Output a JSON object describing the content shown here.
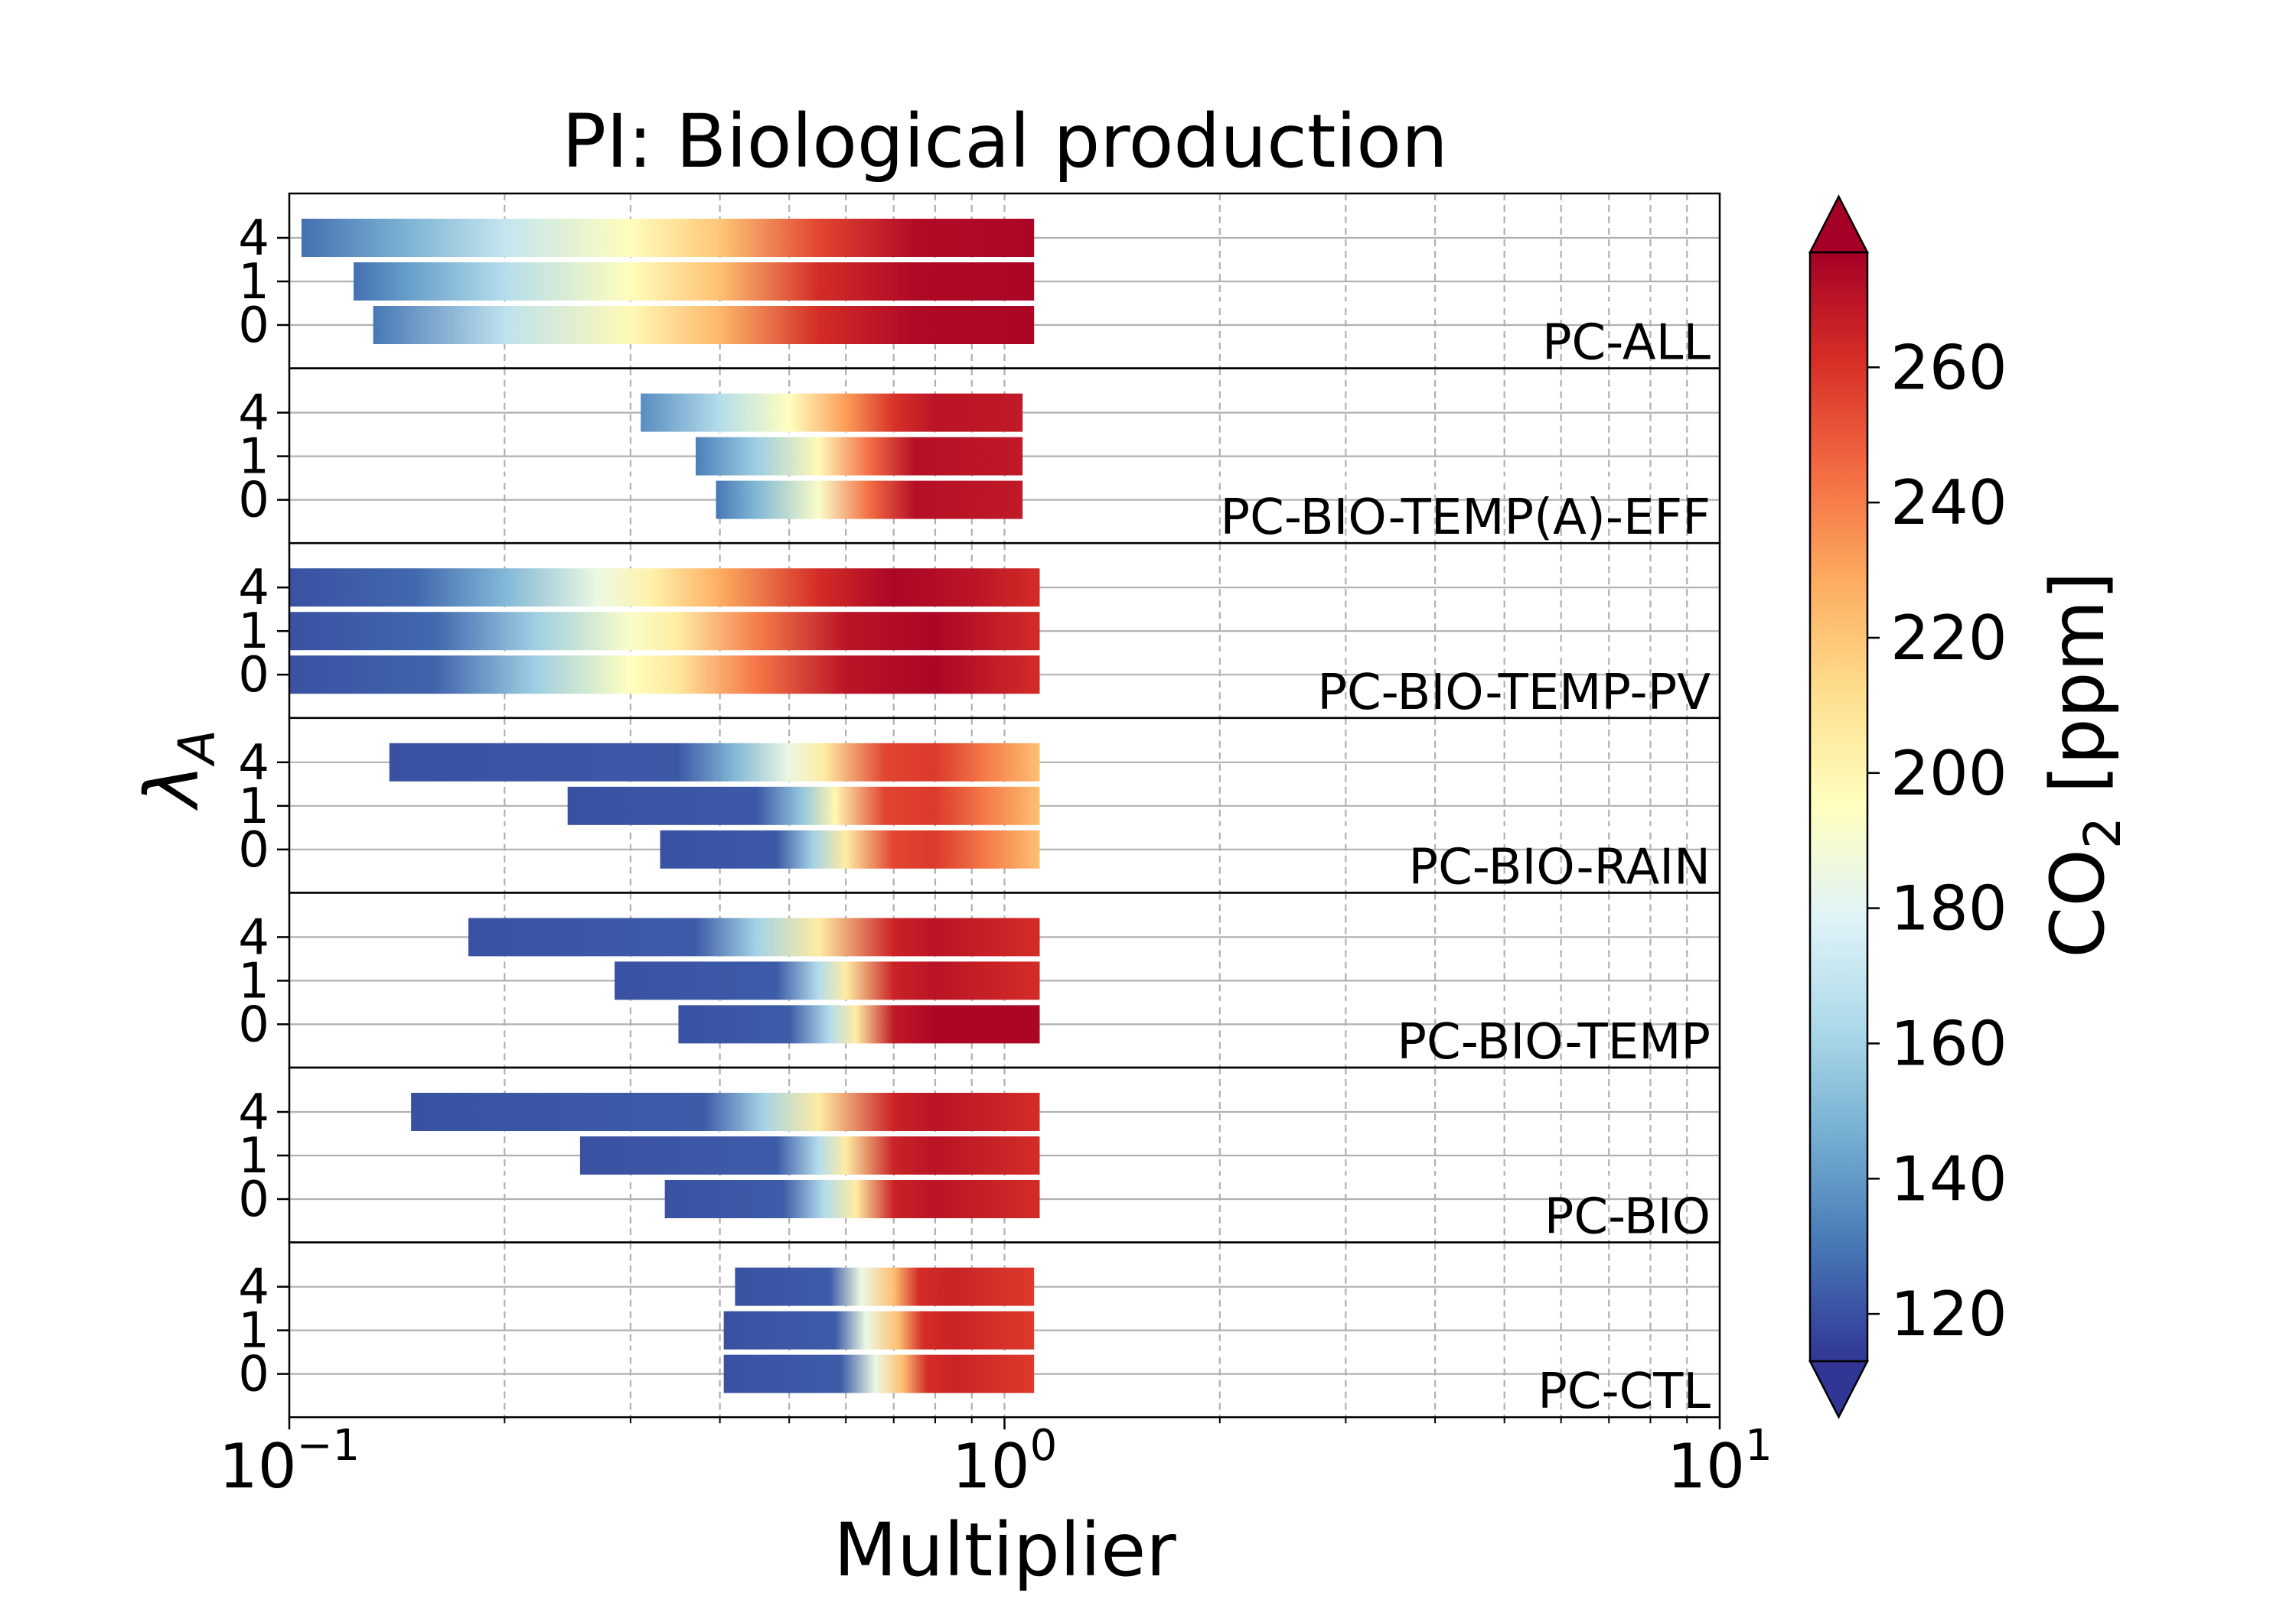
{
  "chart_data": {
    "type": "heatmap",
    "title": "PI: Biological production",
    "xlabel": "Multiplier",
    "ylabel": "λ_A",
    "xscale": "log",
    "xlim": [
      0.1,
      10
    ],
    "x_ticks": [
      {
        "value": 0.1,
        "base": "10",
        "exp": "−1"
      },
      {
        "value": 1,
        "base": "10",
        "exp": "0"
      },
      {
        "value": 10,
        "base": "10",
        "exp": "1"
      }
    ],
    "grid": true,
    "y_tick_labels": [
      "4",
      "1",
      "0"
    ],
    "colorbar": {
      "label_main": "CO",
      "label_sub": "2",
      "label_unit": " [ppm]",
      "range": [
        113,
        277
      ],
      "ticks": [
        120,
        140,
        160,
        180,
        200,
        220,
        240,
        260
      ],
      "extend": "both",
      "colormap": "RdYlBu_r",
      "colors": [
        "#313695",
        "#4575b4",
        "#74add1",
        "#abd9e9",
        "#e0f3f8",
        "#ffffbf",
        "#fee090",
        "#fdae61",
        "#f46d43",
        "#d73027",
        "#a50026"
      ]
    },
    "panels": [
      {
        "name": "PC-ALL",
        "rows": [
          {
            "lambda": "4",
            "x_start": 0.104,
            "x_end": 1.1,
            "co2": [
              [
                0.104,
                128
              ],
              [
                0.15,
                150
              ],
              [
                0.2,
                170
              ],
              [
                0.3,
                196
              ],
              [
                0.4,
                220
              ],
              [
                0.55,
                255
              ],
              [
                0.75,
                273
              ],
              [
                1.1,
                275
              ]
            ]
          },
          {
            "lambda": "1",
            "x_start": 0.123,
            "x_end": 1.1,
            "co2": [
              [
                0.123,
                128
              ],
              [
                0.15,
                143
              ],
              [
                0.2,
                165
              ],
              [
                0.3,
                196
              ],
              [
                0.4,
                222
              ],
              [
                0.55,
                262
              ],
              [
                0.75,
                274
              ],
              [
                1.1,
                275
              ]
            ]
          },
          {
            "lambda": "0",
            "x_start": 0.131,
            "x_end": 1.1,
            "co2": [
              [
                0.131,
                130
              ],
              [
                0.2,
                168
              ],
              [
                0.3,
                198
              ],
              [
                0.4,
                225
              ],
              [
                0.55,
                262
              ],
              [
                0.75,
                274
              ],
              [
                1.1,
                275
              ]
            ]
          }
        ]
      },
      {
        "name": "PC-BIO-TEMP(A)-EFF",
        "rows": [
          {
            "lambda": "4",
            "x_start": 0.31,
            "x_end": 1.06,
            "co2": [
              [
                0.31,
                136
              ],
              [
                0.4,
                165
              ],
              [
                0.5,
                195
              ],
              [
                0.6,
                232
              ],
              [
                0.7,
                260
              ],
              [
                0.8,
                270
              ],
              [
                1.06,
                268
              ]
            ]
          },
          {
            "lambda": "1",
            "x_start": 0.37,
            "x_end": 1.06,
            "co2": [
              [
                0.37,
                132
              ],
              [
                0.45,
                158
              ],
              [
                0.55,
                198
              ],
              [
                0.65,
                245
              ],
              [
                0.75,
                272
              ],
              [
                1.06,
                268
              ]
            ]
          },
          {
            "lambda": "0",
            "x_start": 0.395,
            "x_end": 1.06,
            "co2": [
              [
                0.395,
                130
              ],
              [
                0.45,
                150
              ],
              [
                0.55,
                192
              ],
              [
                0.65,
                245
              ],
              [
                0.75,
                272
              ],
              [
                1.06,
                268
              ]
            ]
          }
        ]
      },
      {
        "name": "PC-BIO-TEMP-PV",
        "rows": [
          {
            "lambda": "4",
            "x_start": 0.1,
            "x_end": 1.12,
            "co2": [
              [
                0.1,
                120
              ],
              [
                0.15,
                126
              ],
              [
                0.2,
                150
              ],
              [
                0.27,
                185
              ],
              [
                0.32,
                202
              ],
              [
                0.4,
                228
              ],
              [
                0.55,
                262
              ],
              [
                0.7,
                275
              ],
              [
                0.9,
                270
              ],
              [
                1.12,
                262
              ]
            ]
          },
          {
            "lambda": "1",
            "x_start": 0.1,
            "x_end": 1.12,
            "co2": [
              [
                0.1,
                120
              ],
              [
                0.16,
                126
              ],
              [
                0.22,
                158
              ],
              [
                0.3,
                192
              ],
              [
                0.35,
                205
              ],
              [
                0.45,
                240
              ],
              [
                0.6,
                270
              ],
              [
                0.8,
                275
              ],
              [
                1.12,
                262
              ]
            ]
          },
          {
            "lambda": "0",
            "x_start": 0.1,
            "x_end": 1.12,
            "co2": [
              [
                0.1,
                120
              ],
              [
                0.16,
                125
              ],
              [
                0.22,
                158
              ],
              [
                0.3,
                195
              ],
              [
                0.35,
                208
              ],
              [
                0.45,
                242
              ],
              [
                0.6,
                270
              ],
              [
                0.8,
                275
              ],
              [
                1.12,
                262
              ]
            ]
          }
        ]
      },
      {
        "name": "PC-BIO-RAIN",
        "rows": [
          {
            "lambda": "4",
            "x_start": 0.138,
            "x_end": 1.12,
            "co2": [
              [
                0.138,
                120
              ],
              [
                0.35,
                122
              ],
              [
                0.42,
                150
              ],
              [
                0.5,
                185
              ],
              [
                0.56,
                205
              ],
              [
                0.68,
                255
              ],
              [
                0.8,
                258
              ],
              [
                0.95,
                240
              ],
              [
                1.12,
                222
              ]
            ]
          },
          {
            "lambda": "1",
            "x_start": 0.245,
            "x_end": 1.12,
            "co2": [
              [
                0.245,
                120
              ],
              [
                0.45,
                122
              ],
              [
                0.52,
                155
              ],
              [
                0.58,
                200
              ],
              [
                0.68,
                255
              ],
              [
                0.8,
                258
              ],
              [
                0.95,
                240
              ],
              [
                1.12,
                222
              ]
            ]
          },
          {
            "lambda": "0",
            "x_start": 0.33,
            "x_end": 1.12,
            "co2": [
              [
                0.33,
                120
              ],
              [
                0.48,
                122
              ],
              [
                0.54,
                160
              ],
              [
                0.6,
                205
              ],
              [
                0.7,
                255
              ],
              [
                0.8,
                258
              ],
              [
                0.95,
                240
              ],
              [
                1.12,
                222
              ]
            ]
          }
        ]
      },
      {
        "name": "PC-BIO-TEMP",
        "rows": [
          {
            "lambda": "4",
            "x_start": 0.178,
            "x_end": 1.12,
            "co2": [
              [
                0.178,
                120
              ],
              [
                0.37,
                123
              ],
              [
                0.45,
                160
              ],
              [
                0.55,
                205
              ],
              [
                0.7,
                265
              ],
              [
                0.8,
                270
              ],
              [
                1.12,
                262
              ]
            ]
          },
          {
            "lambda": "1",
            "x_start": 0.285,
            "x_end": 1.12,
            "co2": [
              [
                0.285,
                120
              ],
              [
                0.48,
                123
              ],
              [
                0.55,
                165
              ],
              [
                0.6,
                205
              ],
              [
                0.7,
                265
              ],
              [
                0.8,
                270
              ],
              [
                1.12,
                262
              ]
            ]
          },
          {
            "lambda": "0",
            "x_start": 0.35,
            "x_end": 1.12,
            "co2": [
              [
                0.35,
                120
              ],
              [
                0.5,
                123
              ],
              [
                0.57,
                165
              ],
              [
                0.62,
                205
              ],
              [
                0.7,
                268
              ],
              [
                0.8,
                275
              ],
              [
                1.12,
                275
              ]
            ]
          }
        ]
      },
      {
        "name": "PC-BIO",
        "rows": [
          {
            "lambda": "4",
            "x_start": 0.148,
            "x_end": 1.12,
            "co2": [
              [
                0.148,
                120
              ],
              [
                0.38,
                123
              ],
              [
                0.46,
                160
              ],
              [
                0.55,
                205
              ],
              [
                0.7,
                265
              ],
              [
                0.8,
                270
              ],
              [
                1.12,
                262
              ]
            ]
          },
          {
            "lambda": "1",
            "x_start": 0.255,
            "x_end": 1.12,
            "co2": [
              [
                0.255,
                120
              ],
              [
                0.48,
                123
              ],
              [
                0.55,
                165
              ],
              [
                0.6,
                205
              ],
              [
                0.7,
                265
              ],
              [
                0.8,
                270
              ],
              [
                1.12,
                262
              ]
            ]
          },
          {
            "lambda": "0",
            "x_start": 0.335,
            "x_end": 1.12,
            "co2": [
              [
                0.335,
                120
              ],
              [
                0.49,
                123
              ],
              [
                0.56,
                165
              ],
              [
                0.62,
                205
              ],
              [
                0.7,
                265
              ],
              [
                0.8,
                270
              ],
              [
                1.12,
                262
              ]
            ]
          }
        ]
      },
      {
        "name": "PC-CTL",
        "rows": [
          {
            "lambda": "4",
            "x_start": 0.42,
            "x_end": 1.1,
            "co2": [
              [
                0.42,
                120
              ],
              [
                0.57,
                123
              ],
              [
                0.63,
                185
              ],
              [
                0.7,
                222
              ],
              [
                0.76,
                262
              ],
              [
                0.85,
                265
              ],
              [
                1.1,
                258
              ]
            ]
          },
          {
            "lambda": "1",
            "x_start": 0.405,
            "x_end": 1.1,
            "co2": [
              [
                0.405,
                120
              ],
              [
                0.58,
                123
              ],
              [
                0.64,
                185
              ],
              [
                0.71,
                222
              ],
              [
                0.77,
                262
              ],
              [
                0.85,
                265
              ],
              [
                1.1,
                258
              ]
            ]
          },
          {
            "lambda": "0",
            "x_start": 0.405,
            "x_end": 1.1,
            "co2": [
              [
                0.405,
                120
              ],
              [
                0.59,
                123
              ],
              [
                0.66,
                185
              ],
              [
                0.72,
                222
              ],
              [
                0.78,
                262
              ],
              [
                0.85,
                265
              ],
              [
                1.1,
                258
              ]
            ]
          }
        ]
      }
    ]
  }
}
